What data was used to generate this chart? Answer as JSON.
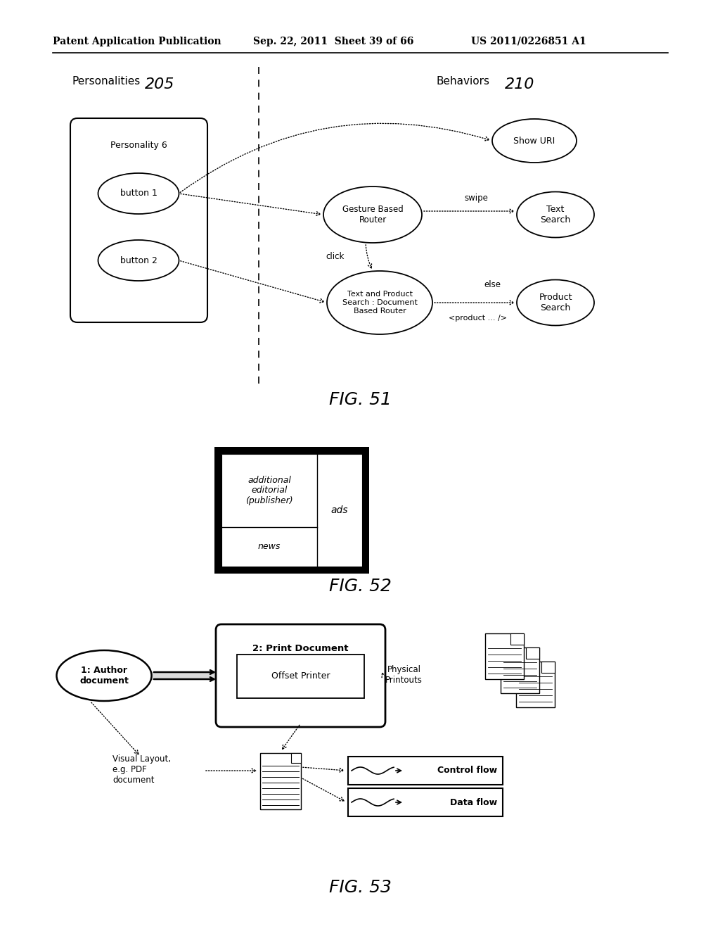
{
  "header_left": "Patent Application Publication",
  "header_mid": "Sep. 22, 2011  Sheet 39 of 66",
  "header_right": "US 2011/0226851 A1",
  "fig51_label": "FIG. 51",
  "fig52_label": "FIG. 52",
  "fig53_label": "FIG. 53",
  "personalities_label": "Personalities",
  "personalities_num": "205",
  "behaviors_label": "Behaviors",
  "behaviors_num": "210",
  "personality6_label": "Personality 6",
  "button1_label": "button 1",
  "button2_label": "button 2",
  "gesture_router_label": "Gesture Based\nRouter",
  "show_uri_label": "Show URI",
  "text_search_label": "Text\nSearch",
  "text_product_label": "Text and Product\nSearch : Document\nBased Router",
  "product_search_label": "Product\nSearch",
  "swipe_label": "swipe",
  "click_label": "click",
  "else_label": "else",
  "product_tag_label": "<product ... />",
  "fig52_cell1": "additional\neditorial\n(publisher)",
  "fig52_cell2": "ads",
  "fig52_cell3": "news",
  "fig53_author_label": "1: Author\ndocument",
  "fig53_print_doc_label": "2: Print Document",
  "fig53_offset_printer_label": "Offset Printer",
  "fig53_physical_label": "Physical\nPrintouts",
  "fig53_visual_label": "Visual Layout,\ne.g. PDF\ndocument",
  "fig53_control_flow_label": "Control flow",
  "fig53_data_flow_label": "Data flow",
  "bg_color": "#ffffff",
  "line_color": "#000000"
}
